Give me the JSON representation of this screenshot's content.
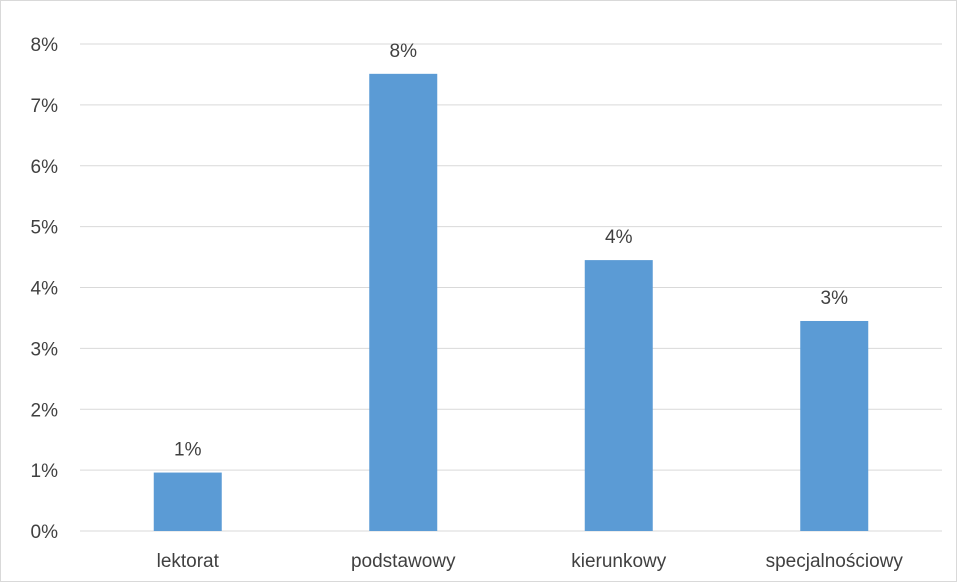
{
  "chart_data": {
    "type": "bar",
    "categories": [
      "lektorat",
      "podstawowy",
      "kierunkowy",
      "specjalnościowy"
    ],
    "values": [
      0.96,
      7.51,
      4.45,
      3.45
    ],
    "data_labels": [
      "1%",
      "8%",
      "4%",
      "3%"
    ],
    "y_tick_labels": [
      "0%",
      "1%",
      "2%",
      "3%",
      "4%",
      "5%",
      "6%",
      "7%",
      "8%"
    ],
    "ylim": [
      0,
      8
    ],
    "grid": true,
    "legend": "none",
    "bar_color": "#5b9bd5",
    "grid_color": "#d9d9d9",
    "title": "",
    "xlabel": "",
    "ylabel": ""
  }
}
